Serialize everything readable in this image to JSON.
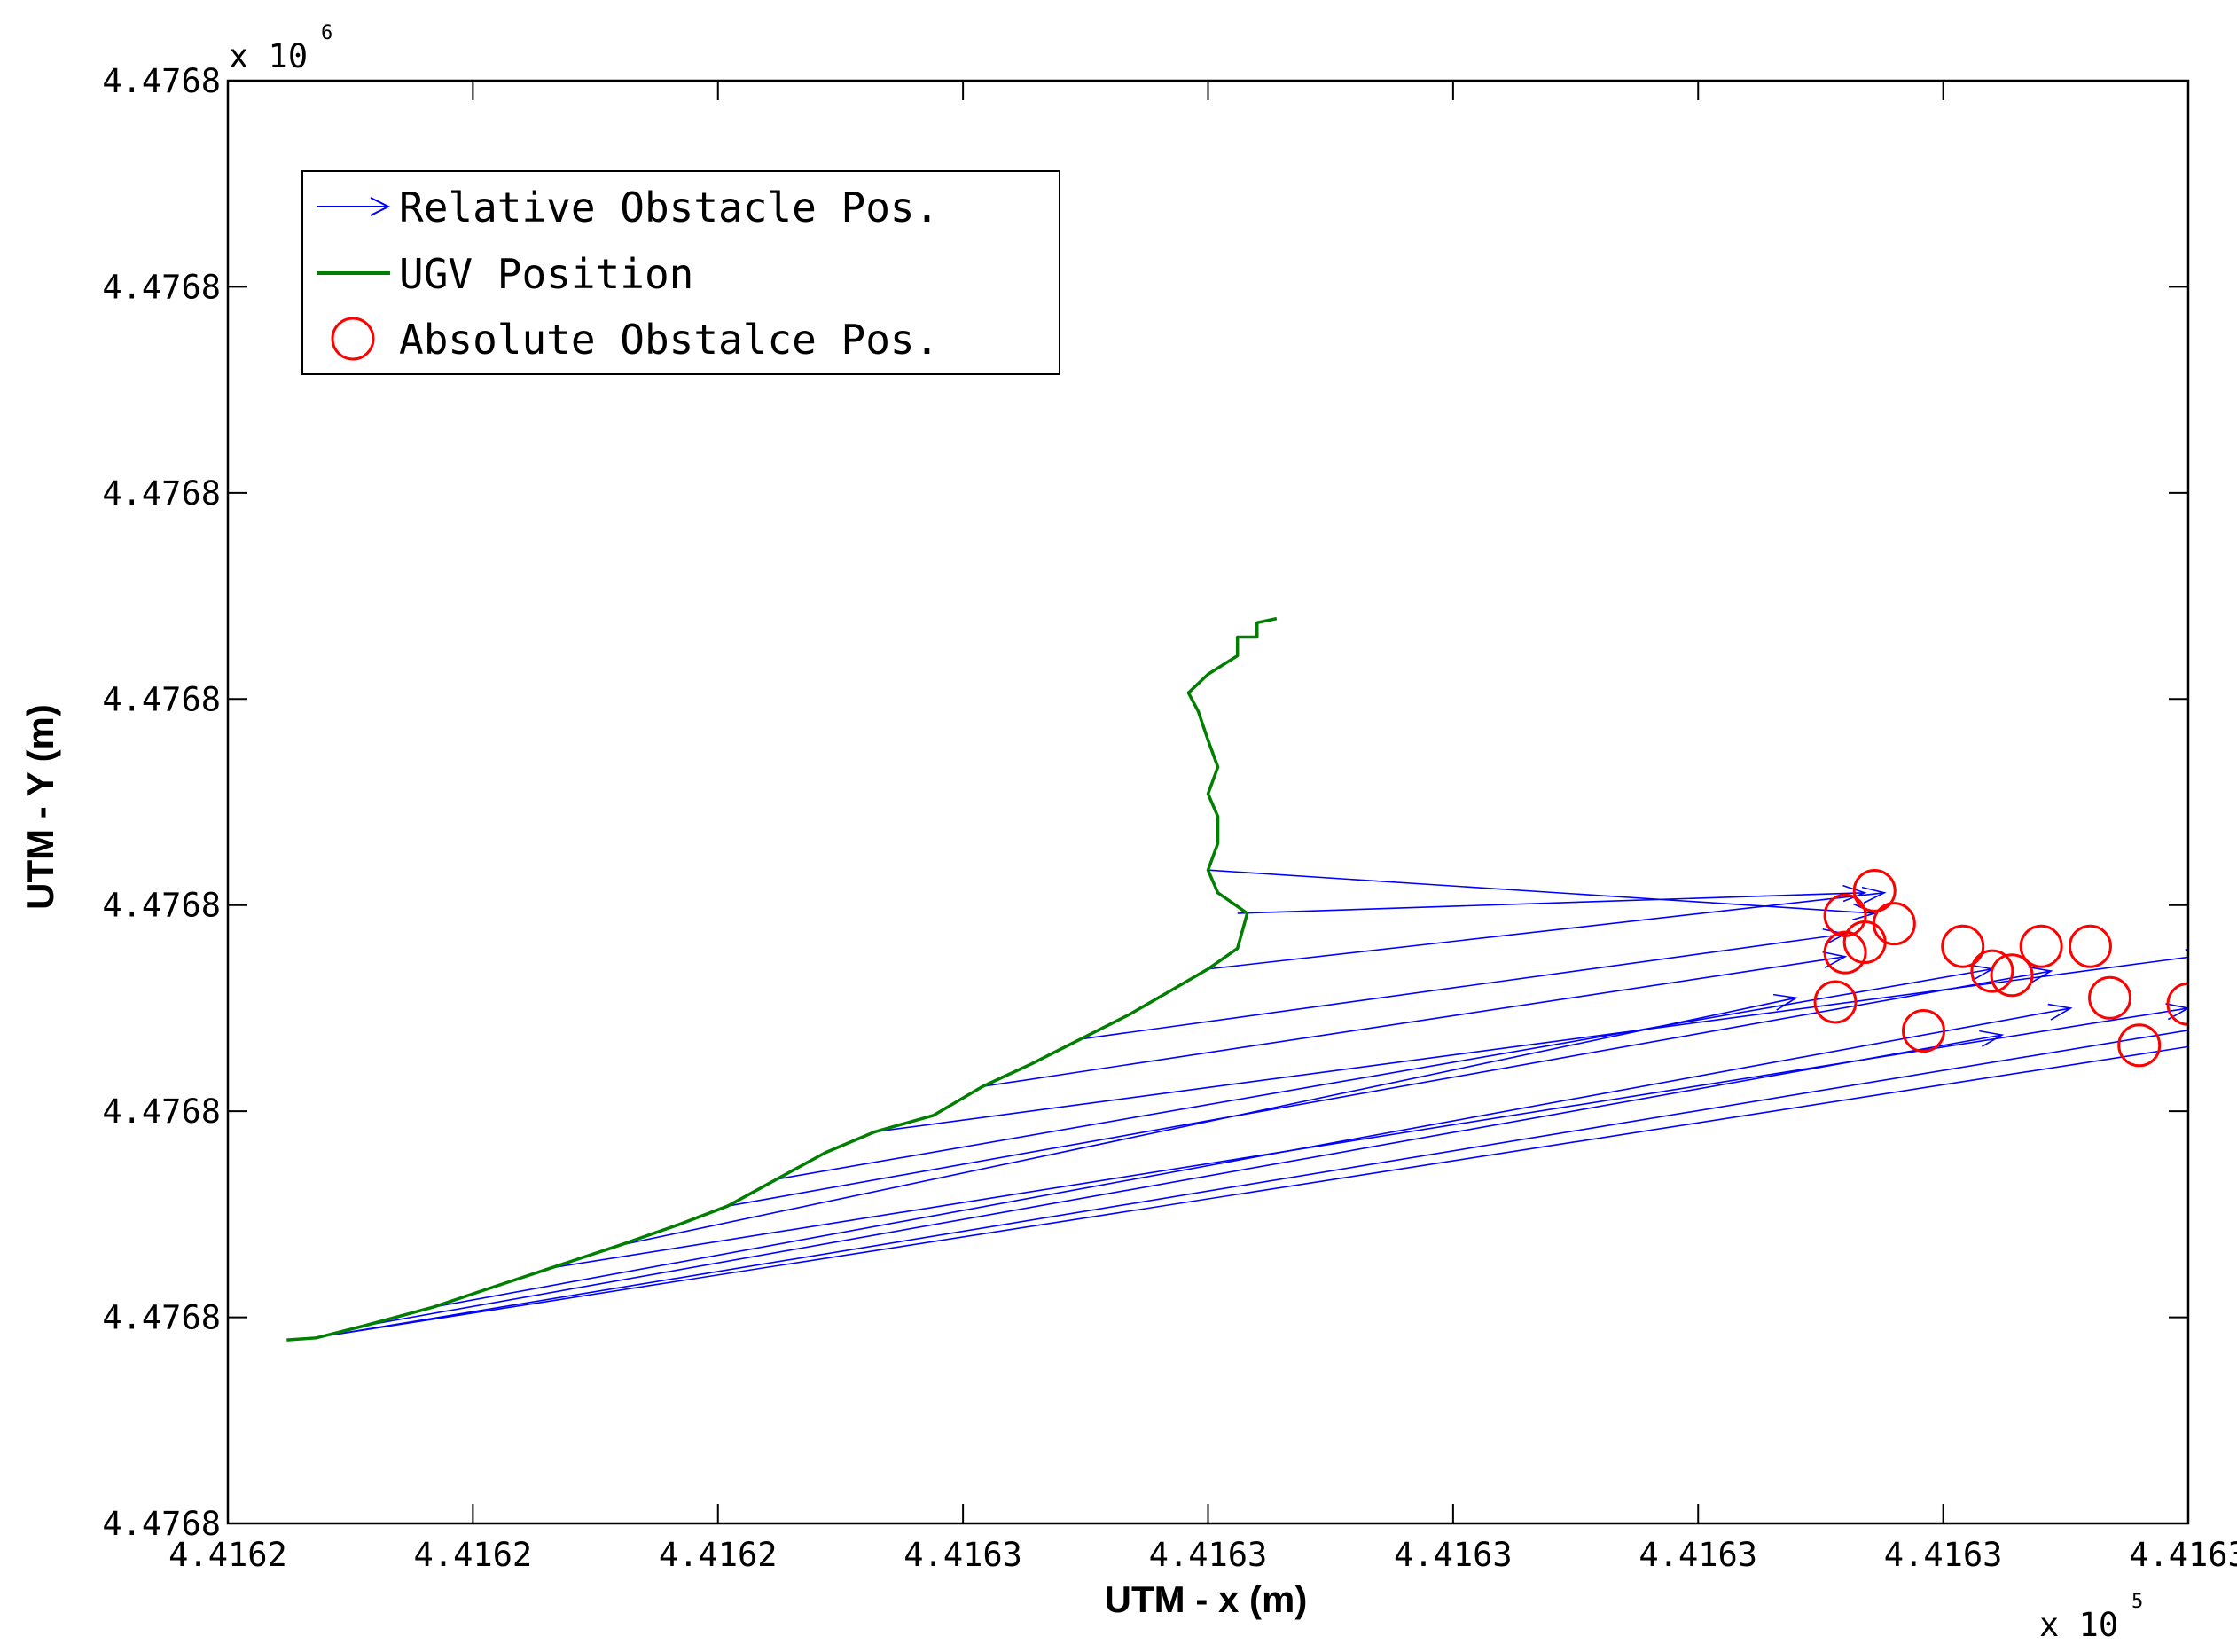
{
  "chart_data": {
    "type": "line",
    "title": "",
    "xlabel": "UTM - x (m)",
    "ylabel": "UTM - Y (m)",
    "x_exponent": {
      "base": "x 10",
      "power": "5"
    },
    "y_exponent": {
      "base": "x 10",
      "power": "6"
    },
    "x_tick_labels": [
      "4.4162",
      "4.4162",
      "4.4162",
      "4.4163",
      "4.4163",
      "4.4163",
      "4.4163",
      "4.4163",
      "4.4163"
    ],
    "y_tick_labels": [
      "4.4768",
      "4.4768",
      "4.4768",
      "4.4768",
      "4.4768",
      "4.4768",
      "4.4768",
      "4.4768"
    ],
    "xlim": [
      441620,
      441640
    ],
    "ylim": [
      4476800,
      4476870
    ],
    "grid": false,
    "legend_position": "top-left",
    "legend": [
      {
        "label": "Relative Obstacle Pos.",
        "marker": "arrow",
        "color": "#0000ff"
      },
      {
        "label": "UGV Position",
        "marker": "line",
        "color": "#007f00"
      },
      {
        "label": "Absolute Obstalce Pos.",
        "marker": "circle",
        "color": "#ff0000"
      }
    ],
    "series": [
      {
        "name": "UGV Position",
        "color": "#007f00",
        "points": [
          [
            441620.6,
            4476808.9
          ],
          [
            441620.9,
            4476809.0
          ],
          [
            441621.4,
            4476809.6
          ],
          [
            441622.1,
            4476810.5
          ],
          [
            441622.6,
            4476811.3
          ],
          [
            441623.3,
            4476812.4
          ],
          [
            441624.0,
            4476813.5
          ],
          [
            441624.6,
            4476814.5
          ],
          [
            441625.1,
            4476815.4
          ],
          [
            441625.6,
            4476816.7
          ],
          [
            441626.1,
            4476818.0
          ],
          [
            441626.6,
            4476819.0
          ],
          [
            441627.2,
            4476819.8
          ],
          [
            441627.7,
            4476821.2
          ],
          [
            441628.2,
            4476822.3
          ],
          [
            441628.7,
            4476823.5
          ],
          [
            441629.2,
            4476824.7
          ],
          [
            441629.6,
            4476825.8
          ],
          [
            441630.0,
            4476826.9
          ],
          [
            441630.3,
            4476827.9
          ],
          [
            441630.4,
            4476829.6
          ],
          [
            441630.1,
            4476830.6
          ],
          [
            441630.0,
            4476831.7
          ],
          [
            441630.1,
            4476833.0
          ],
          [
            441630.1,
            4476834.3
          ],
          [
            441630.0,
            4476835.4
          ],
          [
            441630.1,
            4476836.7
          ],
          [
            441630.0,
            4476838.0
          ],
          [
            441629.9,
            4476839.4
          ],
          [
            441629.8,
            4476840.3
          ],
          [
            441630.0,
            4476841.2
          ],
          [
            441630.3,
            4476842.1
          ],
          [
            441630.3,
            4476843.0
          ],
          [
            441630.5,
            4476843.0
          ],
          [
            441630.5,
            4476843.7
          ],
          [
            441630.7,
            4476843.9
          ]
        ]
      },
      {
        "name": "Relative Obstacle Pos.",
        "color": "#0000ff",
        "arrows": [
          [
            441630.0,
            4476831.7,
            441636.8,
            4476829.6
          ],
          [
            441630.3,
            4476829.6,
            441636.7,
            4476830.6
          ],
          [
            441630.0,
            4476826.9,
            441636.9,
            4476830.6
          ],
          [
            441628.7,
            4476823.5,
            441636.5,
            4476828.6
          ],
          [
            441627.7,
            4476821.2,
            441636.5,
            4476827.5
          ],
          [
            441626.6,
            4476819.0,
            441640.2,
            4476827.6
          ],
          [
            441625.6,
            4476816.7,
            441638.0,
            4476826.9
          ],
          [
            441625.1,
            4476815.4,
            441638.6,
            4476826.8
          ],
          [
            441624.0,
            4476813.5,
            441636.0,
            4476825.5
          ],
          [
            441623.3,
            4476812.4,
            441640.0,
            4476825.0
          ],
          [
            441622.1,
            4476810.5,
            441638.8,
            4476825.0
          ],
          [
            441621.4,
            4476809.6,
            441638.1,
            4476823.7
          ],
          [
            441621.0,
            4476809.1,
            441640.6,
            4476824.4
          ],
          [
            441621.0,
            4476809.1,
            441640.5,
            4476823.5
          ]
        ]
      },
      {
        "name": "Absolute Obstalce Pos.",
        "color": "#ff0000",
        "points": [
          [
            441636.8,
            4476830.7
          ],
          [
            441636.5,
            4476829.5
          ],
          [
            441637.0,
            4476829.1
          ],
          [
            441636.7,
            4476828.2
          ],
          [
            441636.5,
            4476827.7
          ],
          [
            441637.7,
            4476828.0
          ],
          [
            441638.5,
            4476828.0
          ],
          [
            441639.0,
            4476828.0
          ],
          [
            441638.0,
            4476826.8
          ],
          [
            441638.2,
            4476826.6
          ],
          [
            441636.4,
            4476825.3
          ],
          [
            441637.3,
            4476823.9
          ],
          [
            441639.2,
            4476825.5
          ],
          [
            441640.0,
            4476825.2
          ],
          [
            441639.5,
            4476823.2
          ]
        ]
      }
    ]
  }
}
